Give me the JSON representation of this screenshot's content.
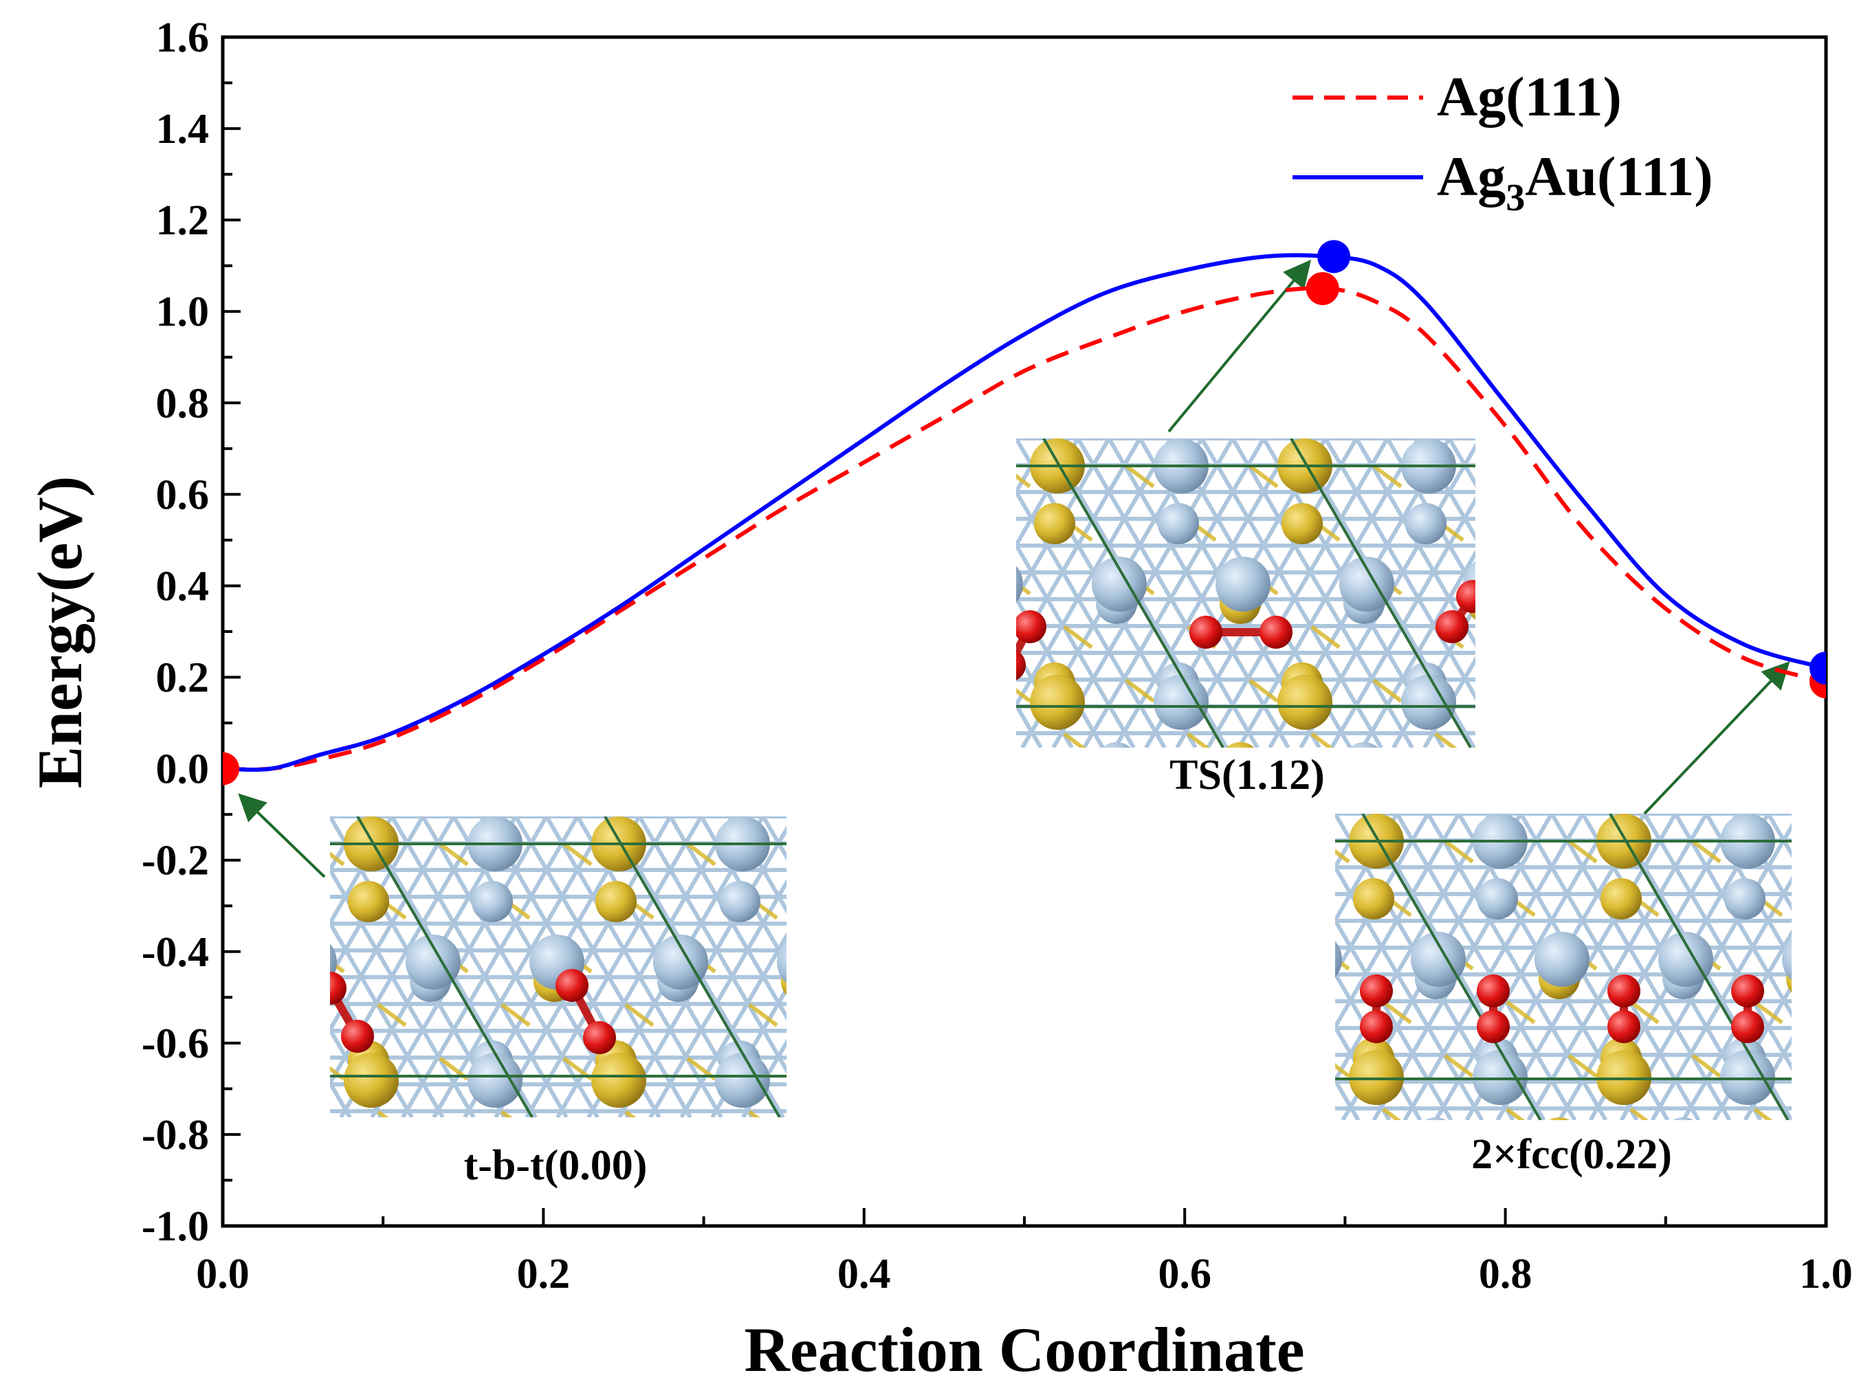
{
  "chart_data": {
    "type": "line",
    "xlabel": "Reaction Coordinate",
    "ylabel": "Energy(eV)",
    "xlim": [
      0.0,
      1.0
    ],
    "ylim": [
      -1.0,
      1.6
    ],
    "x_ticks": [
      "0.0",
      "0.2",
      "0.4",
      "0.6",
      "0.8",
      "1.0"
    ],
    "y_ticks": [
      "-1.0",
      "-0.8",
      "-0.6",
      "-0.4",
      "-0.2",
      "0.0",
      "0.2",
      "0.4",
      "0.6",
      "0.8",
      "1.0",
      "1.2",
      "1.4",
      "1.6"
    ],
    "series": [
      {
        "name": "Ag(111)",
        "legend_main": "Ag(111)",
        "color": "#ff0000",
        "style": "dashed",
        "x": [
          0.0,
          0.03,
          0.06,
          0.1,
          0.15,
          0.2,
          0.25,
          0.3,
          0.35,
          0.4,
          0.45,
          0.5,
          0.55,
          0.6,
          0.65,
          0.69,
          0.72,
          0.75,
          0.8,
          0.85,
          0.9,
          0.95,
          1.0
        ],
        "y": [
          0.0,
          0.0,
          0.02,
          0.06,
          0.14,
          0.24,
          0.35,
          0.46,
          0.57,
          0.67,
          0.77,
          0.87,
          0.94,
          1.0,
          1.04,
          1.05,
          1.02,
          0.95,
          0.75,
          0.52,
          0.35,
          0.24,
          0.19
        ],
        "markers": [
          {
            "x": 0.0,
            "y": 0.0
          },
          {
            "x": 0.686,
            "y": 1.05
          },
          {
            "x": 1.0,
            "y": 0.19
          }
        ]
      },
      {
        "name": "Ag3Au(111)",
        "legend_main": "Ag",
        "legend_sub": "3",
        "legend_rest": "Au(111)",
        "color": "#0000ff",
        "style": "solid",
        "x": [
          0.0,
          0.03,
          0.06,
          0.1,
          0.15,
          0.2,
          0.25,
          0.3,
          0.35,
          0.4,
          0.45,
          0.5,
          0.55,
          0.6,
          0.65,
          0.69,
          0.72,
          0.75,
          0.8,
          0.85,
          0.9,
          0.95,
          1.0
        ],
        "y": [
          0.0,
          0.0,
          0.03,
          0.07,
          0.15,
          0.25,
          0.36,
          0.48,
          0.6,
          0.72,
          0.84,
          0.95,
          1.04,
          1.09,
          1.12,
          1.12,
          1.1,
          1.02,
          0.8,
          0.58,
          0.38,
          0.27,
          0.22
        ],
        "markers": [
          {
            "x": 0.693,
            "y": 1.12
          },
          {
            "x": 1.0,
            "y": 0.22
          }
        ]
      }
    ],
    "annotations": [
      {
        "label": "t-b-t(0.00)",
        "point": {
          "x": 0.0,
          "y": 0.0
        }
      },
      {
        "label": "TS(1.12)",
        "point": {
          "x": 0.686,
          "y": 1.05
        }
      },
      {
        "label": "2×fcc(0.22)",
        "point": {
          "x": 1.0,
          "y": 0.19
        }
      }
    ],
    "legend_position": "top-right",
    "grid": false
  },
  "colors": {
    "ag_atom": "#a9c3dc",
    "au_atom": "#d9b82e",
    "o_atom": "#e01515",
    "bond": "#a9c3dc",
    "cell_line": "#2e6e3a",
    "arrow": "#1f6b2d"
  }
}
